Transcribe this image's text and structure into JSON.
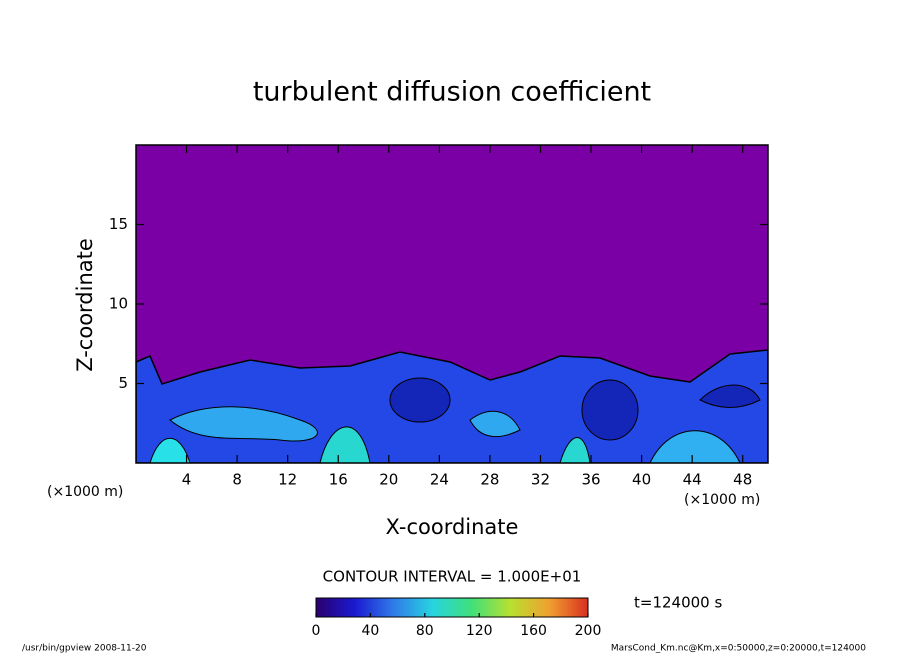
{
  "chart_data": {
    "type": "contour",
    "title": "turbulent diffusion coefficient",
    "x_label": "X-coordinate",
    "y_label": "Z-coordinate",
    "x_unit_label": "(×1000 m)",
    "y_unit_label": "(×1000 m)",
    "xlim": [
      0,
      50
    ],
    "xticks": [
      4,
      8,
      12,
      16,
      20,
      24,
      28,
      32,
      36,
      40,
      44,
      48
    ],
    "ylim": [
      0,
      20
    ],
    "yticks": [
      5,
      10,
      15
    ],
    "contour_interval": "CONTOUR INTERVAL = 1.000E+01",
    "time_label": "t=124000 s",
    "colorbar": {
      "clim": [
        0,
        200
      ],
      "ticks": [
        0,
        40,
        80,
        120,
        160,
        200
      ],
      "colors": [
        "#2a006e",
        "#1a1ad0",
        "#2f7be8",
        "#27d4e0",
        "#3fe07a",
        "#b8e030",
        "#f0a030",
        "#d83020"
      ]
    },
    "footer_left": "/usr/bin/gpview   2008-11-20",
    "footer_right": "MarsCond_Km.nc@Km,x=0:50000,z=0:20000,t=124000"
  }
}
